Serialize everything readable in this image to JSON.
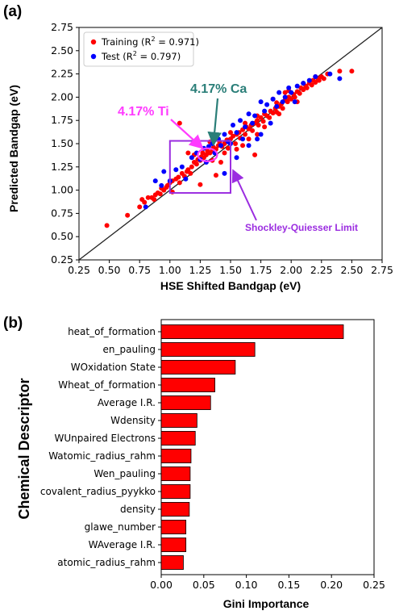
{
  "panels": {
    "a": "(a)",
    "b": "(b)"
  },
  "chart_data": [
    {
      "type": "scatter",
      "xlabel": "HSE Shifted Bandgap (eV)",
      "ylabel": "Predicted Bandgap (eV)",
      "xlim": [
        0.25,
        2.75
      ],
      "ylim": [
        0.25,
        2.75
      ],
      "xticks": [
        "0.25",
        "0.50",
        "0.75",
        "1.00",
        "1.25",
        "1.50",
        "1.75",
        "2.00",
        "2.25",
        "2.50",
        "2.75"
      ],
      "yticks": [
        "0.25",
        "0.50",
        "0.75",
        "1.00",
        "1.25",
        "1.50",
        "1.75",
        "2.00",
        "2.25",
        "2.50",
        "2.75"
      ],
      "legend": {
        "position": "upper-left",
        "training": "Training (R",
        "test": "Test (R",
        "training_r2": " = 0.971)",
        "test_r2": " = 0.797)",
        "sup": "2"
      },
      "identity_line": true,
      "series": [
        {
          "name": "Training",
          "color": "#ff0000",
          "points": [
            [
              0.48,
              0.62
            ],
            [
              0.65,
              0.73
            ],
            [
              0.75,
              0.82
            ],
            [
              0.77,
              0.9
            ],
            [
              0.79,
              0.87
            ],
            [
              0.82,
              0.92
            ],
            [
              0.85,
              0.92
            ],
            [
              0.87,
              0.9
            ],
            [
              0.88,
              0.95
            ],
            [
              0.9,
              0.97
            ],
            [
              0.92,
              0.96
            ],
            [
              0.95,
              1.0
            ],
            [
              0.97,
              1.03
            ],
            [
              1.0,
              1.08
            ],
            [
              1.02,
              1.1
            ],
            [
              1.05,
              1.12
            ],
            [
              1.07,
              1.14
            ],
            [
              1.08,
              1.08
            ],
            [
              1.1,
              1.18
            ],
            [
              1.12,
              1.15
            ],
            [
              1.14,
              1.2
            ],
            [
              1.15,
              1.22
            ],
            [
              1.17,
              1.18
            ],
            [
              1.18,
              1.25
            ],
            [
              1.2,
              1.3
            ],
            [
              1.22,
              1.28
            ],
            [
              1.23,
              1.33
            ],
            [
              1.25,
              1.32
            ],
            [
              1.26,
              1.36
            ],
            [
              1.28,
              1.35
            ],
            [
              1.3,
              1.38
            ],
            [
              1.31,
              1.42
            ],
            [
              1.33,
              1.4
            ],
            [
              1.35,
              1.43
            ],
            [
              1.36,
              1.46
            ],
            [
              1.38,
              1.44
            ],
            [
              1.4,
              1.48
            ],
            [
              1.41,
              1.52
            ],
            [
              1.43,
              1.47
            ],
            [
              1.45,
              1.5
            ],
            [
              1.47,
              1.54
            ],
            [
              1.48,
              1.45
            ],
            [
              1.5,
              1.55
            ],
            [
              1.52,
              1.58
            ],
            [
              1.54,
              1.5
            ],
            [
              1.55,
              1.6
            ],
            [
              1.57,
              1.62
            ],
            [
              1.58,
              1.56
            ],
            [
              1.6,
              1.65
            ],
            [
              1.62,
              1.6
            ],
            [
              1.63,
              1.68
            ],
            [
              1.65,
              1.66
            ],
            [
              1.67,
              1.7
            ],
            [
              1.68,
              1.64
            ],
            [
              1.7,
              1.72
            ],
            [
              1.72,
              1.75
            ],
            [
              1.73,
              1.7
            ],
            [
              1.75,
              1.78
            ],
            [
              1.77,
              1.74
            ],
            [
              1.78,
              1.82
            ],
            [
              1.8,
              1.8
            ],
            [
              1.82,
              1.78
            ],
            [
              1.83,
              1.85
            ],
            [
              1.85,
              1.83
            ],
            [
              1.87,
              1.88
            ],
            [
              1.88,
              1.84
            ],
            [
              1.9,
              1.9
            ],
            [
              1.92,
              1.93
            ],
            [
              1.93,
              1.88
            ],
            [
              1.95,
              1.97
            ],
            [
              1.97,
              1.95
            ],
            [
              1.98,
              2.0
            ],
            [
              2.0,
              1.98
            ],
            [
              2.02,
              2.03
            ],
            [
              2.03,
              2.0
            ],
            [
              2.05,
              2.06
            ],
            [
              2.07,
              2.04
            ],
            [
              2.08,
              2.1
            ],
            [
              2.1,
              2.08
            ],
            [
              2.12,
              2.12
            ],
            [
              2.13,
              2.1
            ],
            [
              2.15,
              2.15
            ],
            [
              2.17,
              2.13
            ],
            [
              2.18,
              2.18
            ],
            [
              2.2,
              2.16
            ],
            [
              2.22,
              2.2
            ],
            [
              2.23,
              2.18
            ],
            [
              2.25,
              2.22
            ],
            [
              2.27,
              2.2
            ],
            [
              2.3,
              2.25
            ],
            [
              2.4,
              2.28
            ],
            [
              2.5,
              2.28
            ],
            [
              1.08,
              1.72
            ],
            [
              1.15,
              1.4
            ],
            [
              1.42,
              1.3
            ],
            [
              1.38,
              1.16
            ],
            [
              1.6,
              1.48
            ],
            [
              1.72,
              1.6
            ],
            [
              1.85,
              1.98
            ],
            [
              1.7,
              1.38
            ],
            [
              1.25,
              1.06
            ],
            [
              1.02,
              0.98
            ],
            [
              1.65,
              1.55
            ],
            [
              1.95,
              2.05
            ],
            [
              1.5,
              1.62
            ],
            [
              1.33,
              1.52
            ],
            [
              1.9,
              1.82
            ],
            [
              2.05,
              1.95
            ],
            [
              1.78,
              1.68
            ],
            [
              1.2,
              1.38
            ],
            [
              0.98,
              1.05
            ],
            [
              0.93,
              1.02
            ],
            [
              1.55,
              1.44
            ],
            [
              1.62,
              1.72
            ],
            [
              2.1,
              2.15
            ],
            [
              1.88,
              1.94
            ],
            [
              2.2,
              2.22
            ],
            [
              1.45,
              1.4
            ],
            [
              1.27,
              1.4
            ],
            [
              1.35,
              1.32
            ],
            [
              1.72,
              1.8
            ],
            [
              1.98,
              2.07
            ]
          ]
        },
        {
          "name": "Test",
          "color": "#0000ff",
          "points": [
            [
              0.8,
              0.82
            ],
            [
              0.88,
              1.1
            ],
            [
              0.95,
              1.2
            ],
            [
              1.0,
              1.1
            ],
            [
              1.05,
              1.22
            ],
            [
              1.1,
              1.25
            ],
            [
              1.13,
              1.12
            ],
            [
              1.18,
              1.35
            ],
            [
              1.22,
              1.4
            ],
            [
              1.25,
              1.33
            ],
            [
              1.28,
              1.45
            ],
            [
              1.3,
              1.3
            ],
            [
              1.32,
              1.47
            ],
            [
              1.35,
              1.5
            ],
            [
              1.37,
              1.4
            ],
            [
              1.4,
              1.55
            ],
            [
              1.42,
              1.48
            ],
            [
              1.45,
              1.6
            ],
            [
              1.48,
              1.52
            ],
            [
              1.5,
              1.5
            ],
            [
              1.52,
              1.7
            ],
            [
              1.55,
              1.62
            ],
            [
              1.58,
              1.75
            ],
            [
              1.6,
              1.55
            ],
            [
              1.62,
              1.68
            ],
            [
              1.65,
              1.82
            ],
            [
              1.68,
              1.72
            ],
            [
              1.7,
              1.8
            ],
            [
              1.72,
              1.55
            ],
            [
              1.75,
              1.95
            ],
            [
              1.78,
              1.85
            ],
            [
              1.8,
              1.92
            ],
            [
              1.83,
              1.72
            ],
            [
              1.85,
              1.98
            ],
            [
              1.88,
              1.9
            ],
            [
              1.9,
              2.05
            ],
            [
              1.93,
              1.95
            ],
            [
              1.95,
              2.0
            ],
            [
              1.98,
              2.1
            ],
            [
              2.0,
              2.05
            ],
            [
              2.03,
              1.95
            ],
            [
              2.05,
              2.12
            ],
            [
              2.1,
              2.15
            ],
            [
              2.15,
              2.18
            ],
            [
              2.2,
              2.22
            ],
            [
              2.32,
              2.25
            ],
            [
              2.4,
              2.2
            ],
            [
              1.55,
              1.35
            ],
            [
              1.65,
              1.48
            ],
            [
              1.45,
              1.18
            ],
            [
              1.2,
              1.52
            ],
            [
              1.75,
              1.6
            ],
            [
              0.93,
              1.05
            ]
          ]
        }
      ],
      "annotations": {
        "ti": "4.17% Ti",
        "ca": "4.17% Ca",
        "sq": "Shockley-Quiesser Limit",
        "sq_box": {
          "x0": 1.0,
          "x1": 1.5,
          "y0": 0.97,
          "y1": 1.53
        },
        "ellipse": {
          "cx": 1.31,
          "cy": 1.38
        },
        "colors": {
          "ti": "#ff3bff",
          "ca": "#2a7e78",
          "sq": "#9b2de0"
        }
      }
    },
    {
      "type": "bar",
      "orientation": "horizontal",
      "xlabel": "Gini Importance",
      "ylabel": "Chemical Descriptor",
      "xlim": [
        0,
        0.25
      ],
      "xticks": [
        "0.00",
        "0.05",
        "0.10",
        "0.15",
        "0.20",
        "0.25"
      ],
      "bar_color": "#ff0000",
      "categories": [
        "heat_of_formation",
        "en_pauling",
        "WOxidation State",
        "Wheat_of_formation",
        "Average I.R.",
        "Wdensity",
        "WUnpaired Electrons",
        "Watomic_radius_rahm",
        "Wen_pauling",
        "covalent_radius_pyykko",
        "density",
        "glawe_number",
        "WAverage I.R.",
        "atomic_radius_rahm"
      ],
      "values": [
        0.214,
        0.11,
        0.087,
        0.063,
        0.058,
        0.042,
        0.04,
        0.035,
        0.034,
        0.034,
        0.033,
        0.029,
        0.029,
        0.026
      ]
    }
  ]
}
